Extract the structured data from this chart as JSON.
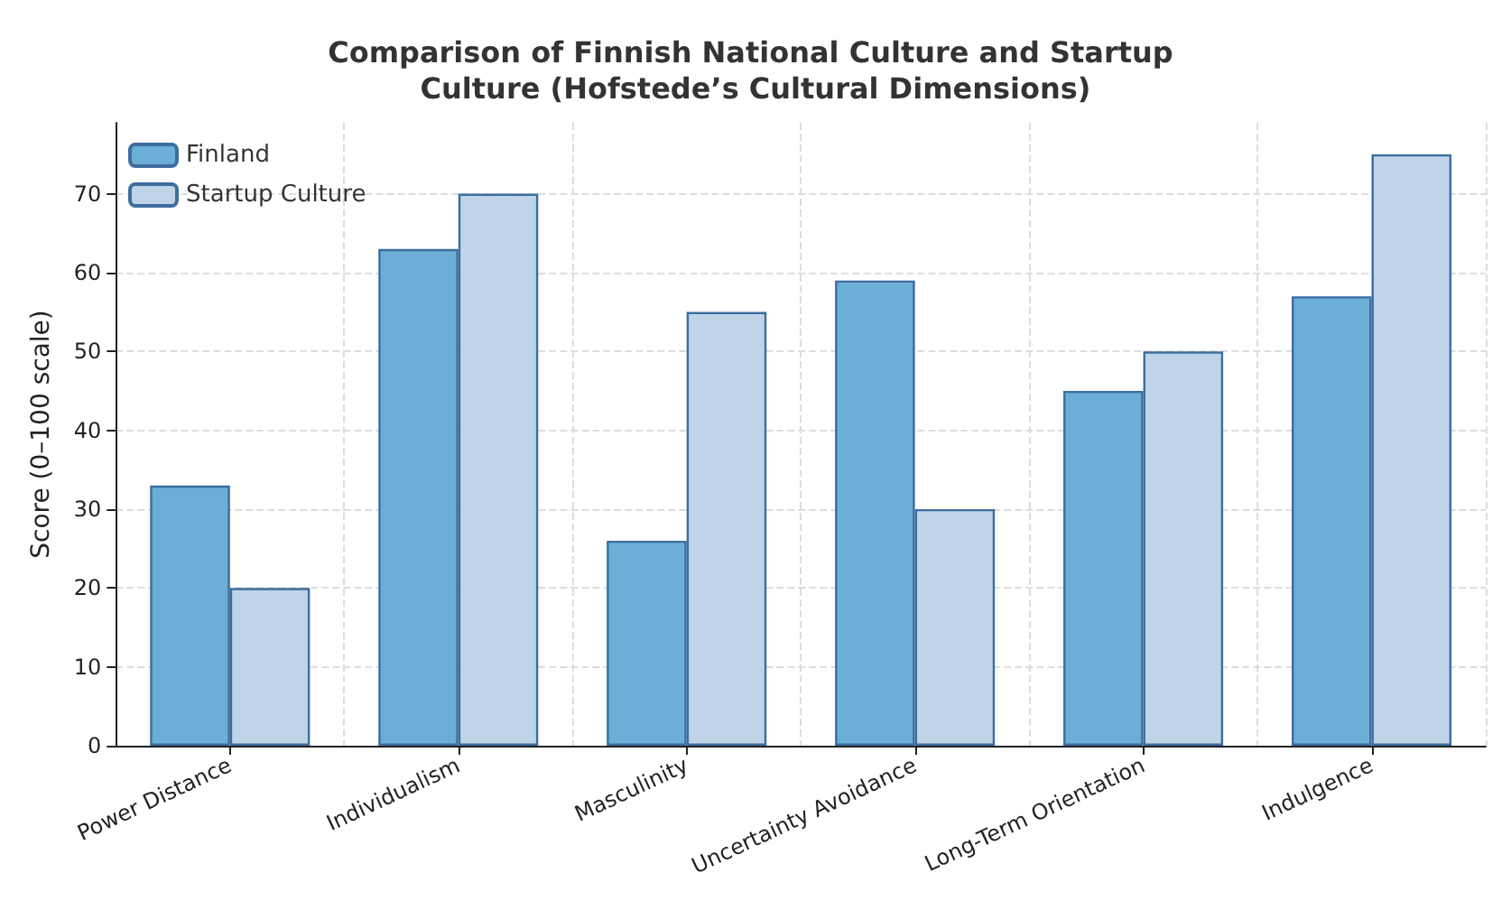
{
  "chart_data": {
    "type": "bar",
    "title": "Comparison of Finnish National Culture and Startup Culture (Hofstede’s Cultural Dimensions)",
    "ylabel": "Score (0–100 scale)",
    "categories": [
      "Power Distance",
      "Individualism",
      "Masculinity",
      "Uncertainty Avoidance",
      "Long-Term Orientation",
      "Indulgence"
    ],
    "series": [
      {
        "name": "Finland",
        "color": "#6baed6",
        "values": [
          33,
          63,
          26,
          59,
          45,
          57
        ]
      },
      {
        "name": "Startup Culture",
        "color": "#c0d4e8",
        "values": [
          20,
          70,
          55,
          30,
          50,
          75
        ]
      }
    ],
    "ylim": [
      0,
      79
    ],
    "yticks": [
      0,
      10,
      20,
      30,
      40,
      50,
      60,
      70
    ],
    "grid": true,
    "legend": "top left"
  }
}
